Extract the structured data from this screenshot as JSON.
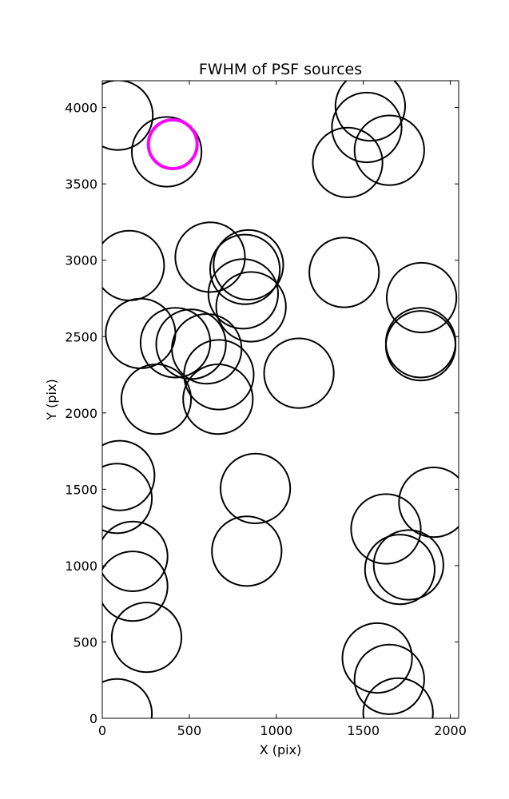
{
  "chart_data": {
    "type": "scatter",
    "title": "FWHM of PSF sources",
    "xlabel": "X (pix)",
    "ylabel": "Y (pix)",
    "xlim": [
      0,
      2048
    ],
    "ylim": [
      0,
      4176
    ],
    "xticks": [
      0,
      500,
      1000,
      1500,
      2000
    ],
    "yticks": [
      0,
      500,
      1000,
      1500,
      2000,
      2500,
      3000,
      3500,
      4000
    ],
    "grid": false,
    "colors": {
      "source": "#000000",
      "highlight": "#ff00ff"
    },
    "series": [
      {
        "marker": "open-circle",
        "color": "#000000",
        "points": [
          {
            "x": 90,
            "y": 3950,
            "fwhm": 200
          },
          {
            "x": 370,
            "y": 3710,
            "fwhm": 200
          },
          {
            "x": 1540,
            "y": 4010,
            "fwhm": 200
          },
          {
            "x": 1520,
            "y": 3870,
            "fwhm": 200
          },
          {
            "x": 1650,
            "y": 3720,
            "fwhm": 200
          },
          {
            "x": 1410,
            "y": 3640,
            "fwhm": 200
          },
          {
            "x": 155,
            "y": 2965,
            "fwhm": 200
          },
          {
            "x": 620,
            "y": 3020,
            "fwhm": 200
          },
          {
            "x": 840,
            "y": 2970,
            "fwhm": 200
          },
          {
            "x": 820,
            "y": 2940,
            "fwhm": 200
          },
          {
            "x": 810,
            "y": 2780,
            "fwhm": 200
          },
          {
            "x": 855,
            "y": 2695,
            "fwhm": 200
          },
          {
            "x": 1390,
            "y": 2920,
            "fwhm": 200
          },
          {
            "x": 1835,
            "y": 2755,
            "fwhm": 200
          },
          {
            "x": 220,
            "y": 2520,
            "fwhm": 200
          },
          {
            "x": 420,
            "y": 2460,
            "fwhm": 200
          },
          {
            "x": 510,
            "y": 2450,
            "fwhm": 200
          },
          {
            "x": 600,
            "y": 2420,
            "fwhm": 200
          },
          {
            "x": 1830,
            "y": 2460,
            "fwhm": 200
          },
          {
            "x": 1830,
            "y": 2440,
            "fwhm": 200
          },
          {
            "x": 670,
            "y": 2250,
            "fwhm": 200
          },
          {
            "x": 1130,
            "y": 2260,
            "fwhm": 200
          },
          {
            "x": 310,
            "y": 2090,
            "fwhm": 200
          },
          {
            "x": 665,
            "y": 2090,
            "fwhm": 200
          },
          {
            "x": 100,
            "y": 1590,
            "fwhm": 200
          },
          {
            "x": 85,
            "y": 1440,
            "fwhm": 200
          },
          {
            "x": 880,
            "y": 1505,
            "fwhm": 200
          },
          {
            "x": 1905,
            "y": 1415,
            "fwhm": 200
          },
          {
            "x": 1630,
            "y": 1240,
            "fwhm": 200
          },
          {
            "x": 175,
            "y": 1060,
            "fwhm": 200
          },
          {
            "x": 830,
            "y": 1095,
            "fwhm": 200
          },
          {
            "x": 1760,
            "y": 1005,
            "fwhm": 200
          },
          {
            "x": 1710,
            "y": 975,
            "fwhm": 200
          },
          {
            "x": 175,
            "y": 865,
            "fwhm": 200
          },
          {
            "x": 255,
            "y": 530,
            "fwhm": 200
          },
          {
            "x": 1580,
            "y": 395,
            "fwhm": 200
          },
          {
            "x": 1650,
            "y": 255,
            "fwhm": 200
          },
          {
            "x": 1700,
            "y": 35,
            "fwhm": 200
          },
          {
            "x": 85,
            "y": 30,
            "fwhm": 200
          }
        ]
      },
      {
        "marker": "open-circle",
        "color": "#ff00ff",
        "highlight": true,
        "points": [
          {
            "x": 405,
            "y": 3760,
            "fwhm": 140
          }
        ]
      }
    ]
  }
}
